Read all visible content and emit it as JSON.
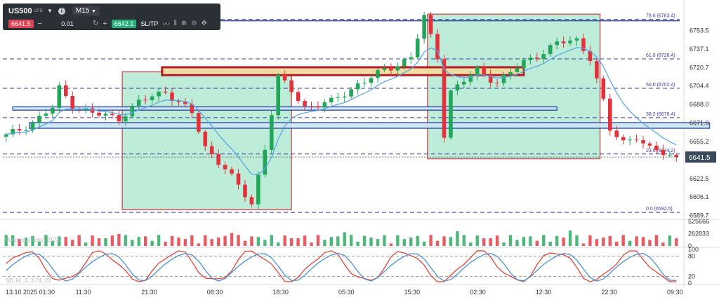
{
  "toolbar": {
    "symbol": "US500",
    "symbol_badge": "CFD",
    "timeframe": "M15",
    "sell_price": "6641.5",
    "quantity": "0.01",
    "buy_price": "6642.1",
    "sltp_label": "SL/TP",
    "minus_label": "−",
    "plus_label": "+"
  },
  "chart_data": [
    {
      "type": "candlestick",
      "symbol": "US500",
      "timeframe": "M15",
      "last_price": 6641.5,
      "ylim": [
        6587,
        6770
      ],
      "y_ticks": [
        6753.5,
        6737.1,
        6720.7,
        6704.4,
        6688.0,
        6671.6,
        6655.2,
        6638.9,
        6622.5,
        6606.1,
        6589.7
      ],
      "x_ticks": [
        "13.10.2025 01:30",
        "11:30",
        "21:30",
        "08:30",
        "18:30",
        "05:30",
        "15:30",
        "02:30",
        "12:30",
        "22:30",
        "09:30"
      ],
      "close_path": [
        {
          "x": 0,
          "y": 6660
        },
        {
          "x": 4,
          "y": 6672
        },
        {
          "x": 7,
          "y": 6685
        },
        {
          "x": 8,
          "y": 6702
        },
        {
          "x": 10,
          "y": 6688
        },
        {
          "x": 13,
          "y": 6680
        },
        {
          "x": 17,
          "y": 6676
        },
        {
          "x": 20,
          "y": 6690
        },
        {
          "x": 24,
          "y": 6700
        },
        {
          "x": 28,
          "y": 6680
        },
        {
          "x": 30,
          "y": 6650
        },
        {
          "x": 33,
          "y": 6632
        },
        {
          "x": 35,
          "y": 6615
        },
        {
          "x": 37,
          "y": 6600
        },
        {
          "x": 39,
          "y": 6650
        },
        {
          "x": 41,
          "y": 6712
        },
        {
          "x": 43,
          "y": 6700
        },
        {
          "x": 45,
          "y": 6686
        },
        {
          "x": 49,
          "y": 6690
        },
        {
          "x": 53,
          "y": 6706
        },
        {
          "x": 57,
          "y": 6718
        },
        {
          "x": 61,
          "y": 6730
        },
        {
          "x": 63,
          "y": 6765
        },
        {
          "x": 65,
          "y": 6730
        },
        {
          "x": 66,
          "y": 6662
        },
        {
          "x": 67,
          "y": 6700
        },
        {
          "x": 71,
          "y": 6718
        },
        {
          "x": 74,
          "y": 6708
        },
        {
          "x": 78,
          "y": 6725
        },
        {
          "x": 83,
          "y": 6742
        },
        {
          "x": 86,
          "y": 6745
        },
        {
          "x": 88,
          "y": 6730
        },
        {
          "x": 90,
          "y": 6690
        },
        {
          "x": 91,
          "y": 6665
        },
        {
          "x": 93,
          "y": 6655
        },
        {
          "x": 95,
          "y": 6660
        },
        {
          "x": 97,
          "y": 6648
        },
        {
          "x": 99,
          "y": 6645
        },
        {
          "x": 101,
          "y": 6641.5
        }
      ],
      "fib_levels": [
        {
          "label": "78.6 (6763.4)",
          "value": 6763.4
        },
        {
          "label": "61.8 (6728.4)",
          "value": 6728.4
        },
        {
          "label": "50.0 (6702.4)",
          "value": 6702.4
        },
        {
          "label": "38.2 (6676.4)",
          "value": 6676.4
        },
        {
          "label": "23.6 (6644.2)",
          "value": 6644.2
        },
        {
          "label": "0.0 (6592.5)",
          "value": 6592.5
        }
      ],
      "zones": [
        {
          "kind": "green_box",
          "x_start": 17.5,
          "x_end": 43,
          "y_low": 6595,
          "y_high": 6717
        },
        {
          "kind": "green_box",
          "x_start": 63.5,
          "x_end": 89.5,
          "y_low": 6640,
          "y_high": 6768
        },
        {
          "kind": "supply_band",
          "x_start": 23.5,
          "x_end": 78,
          "y_low": 6714,
          "y_high": 6721
        },
        {
          "kind": "blue_band",
          "x_start": 1,
          "x_end": 83,
          "y_low": 6683,
          "y_high": 6686
        },
        {
          "kind": "blue_band",
          "x_start": 3.5,
          "x_end": 106,
          "y_low": 6667,
          "y_high": 6672
        }
      ]
    },
    {
      "type": "bar",
      "title": "Volumes (Tickv) 2173",
      "y_ticks": [
        525666,
        262833,
        0
      ],
      "ylim": [
        0,
        525666
      ]
    },
    {
      "type": "line",
      "title": "SD 14, 3, 3 74, 23",
      "ylim": [
        0,
        100
      ],
      "y_ticks": [
        100,
        80,
        20,
        0
      ],
      "series": [
        {
          "color": "#e0453a"
        },
        {
          "color": "#4a90d9"
        }
      ]
    }
  ]
}
